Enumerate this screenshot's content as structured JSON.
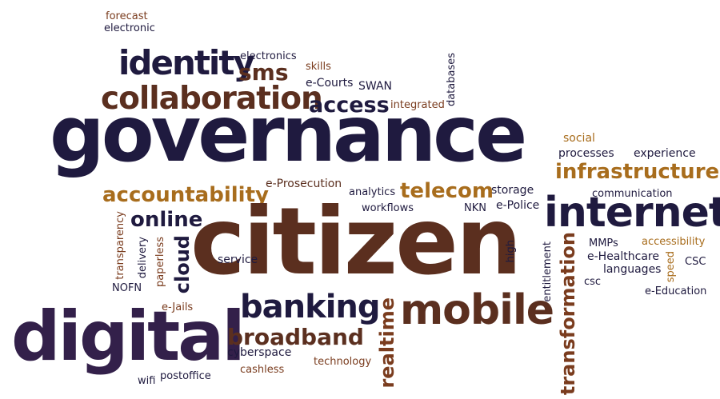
{
  "palette": {
    "navy": "#1f1a3f",
    "purple": "#33204a",
    "brown": "#5b2f1f",
    "rust": "#7a3c1e",
    "gold": "#a86d1d",
    "dark": "#2b2b2b"
  },
  "words": [
    {
      "key": "forecast",
      "text": "forecast",
      "color": "rust"
    },
    {
      "key": "electronic",
      "text": "electronic",
      "color": "navy"
    },
    {
      "key": "identity",
      "text": "identity",
      "color": "navy"
    },
    {
      "key": "sms",
      "text": "sms",
      "color": "brown"
    },
    {
      "key": "electronics",
      "text": "electronics",
      "color": "navy"
    },
    {
      "key": "skills",
      "text": "skills",
      "color": "rust"
    },
    {
      "key": "databases",
      "text": "databases",
      "color": "navy"
    },
    {
      "key": "e_courts",
      "text": "e-Courts",
      "color": "navy"
    },
    {
      "key": "swan",
      "text": "SWAN",
      "color": "navy"
    },
    {
      "key": "collaboration",
      "text": "collaboration",
      "color": "brown"
    },
    {
      "key": "access",
      "text": "access",
      "color": "navy"
    },
    {
      "key": "integrated",
      "text": "integrated",
      "color": "rust"
    },
    {
      "key": "governance",
      "text": "governance",
      "color": "navy"
    },
    {
      "key": "social",
      "text": "social",
      "color": "gold"
    },
    {
      "key": "processes",
      "text": "processes",
      "color": "navy"
    },
    {
      "key": "experience",
      "text": "experience",
      "color": "navy"
    },
    {
      "key": "infrastructure",
      "text": "infrastructure",
      "color": "gold"
    },
    {
      "key": "e_prosecution",
      "text": "e-Prosecution",
      "color": "brown"
    },
    {
      "key": "accountability",
      "text": "accountability",
      "color": "gold"
    },
    {
      "key": "analytics",
      "text": "analytics",
      "color": "navy"
    },
    {
      "key": "telecom",
      "text": "telecom",
      "color": "gold"
    },
    {
      "key": "storage",
      "text": "storage",
      "color": "navy"
    },
    {
      "key": "communication",
      "text": "communication",
      "color": "navy"
    },
    {
      "key": "workflows",
      "text": "workflows",
      "color": "navy"
    },
    {
      "key": "nkn",
      "text": "NKN",
      "color": "navy"
    },
    {
      "key": "e_police",
      "text": "e-Police",
      "color": "navy"
    },
    {
      "key": "internet",
      "text": "internet",
      "color": "navy"
    },
    {
      "key": "online",
      "text": "online",
      "color": "navy"
    },
    {
      "key": "citizen",
      "text": "citizen",
      "color": "brown"
    },
    {
      "key": "transparency",
      "text": "transparency",
      "color": "rust"
    },
    {
      "key": "delivery",
      "text": "delivery",
      "color": "navy"
    },
    {
      "key": "paperless",
      "text": "paperless",
      "color": "rust"
    },
    {
      "key": "cloud",
      "text": "cloud",
      "color": "navy"
    },
    {
      "key": "service",
      "text": "service",
      "color": "navy"
    },
    {
      "key": "high",
      "text": "high",
      "color": "navy"
    },
    {
      "key": "entitlement",
      "text": "entitlement",
      "color": "navy"
    },
    {
      "key": "transformation",
      "text": "transformation",
      "color": "rust"
    },
    {
      "key": "mmps",
      "text": "MMPs",
      "color": "navy"
    },
    {
      "key": "accessibility",
      "text": "accessibility",
      "color": "gold"
    },
    {
      "key": "e_healthcare",
      "text": "e-Healthcare",
      "color": "navy"
    },
    {
      "key": "speed",
      "text": "speed",
      "color": "gold"
    },
    {
      "key": "csc_upper",
      "text": "CSC",
      "color": "navy"
    },
    {
      "key": "languages",
      "text": "languages",
      "color": "navy"
    },
    {
      "key": "csc_lower",
      "text": "csc",
      "color": "navy"
    },
    {
      "key": "e_education",
      "text": "e-Education",
      "color": "navy"
    },
    {
      "key": "nofn",
      "text": "NOFN",
      "color": "navy"
    },
    {
      "key": "banking",
      "text": "banking",
      "color": "navy"
    },
    {
      "key": "realtime",
      "text": "realtime",
      "color": "rust"
    },
    {
      "key": "mobile",
      "text": "mobile",
      "color": "brown"
    },
    {
      "key": "e_jails",
      "text": "e-Jails",
      "color": "rust"
    },
    {
      "key": "digital",
      "text": "digital",
      "color": "purple"
    },
    {
      "key": "broadband",
      "text": "broadband",
      "color": "brown"
    },
    {
      "key": "cyberspace",
      "text": "cyberspace",
      "color": "navy"
    },
    {
      "key": "technology",
      "text": "technology",
      "color": "rust"
    },
    {
      "key": "cashless",
      "text": "cashless",
      "color": "rust"
    },
    {
      "key": "wifi",
      "text": "wifi",
      "color": "navy"
    },
    {
      "key": "postoffice",
      "text": "postoffice",
      "color": "navy"
    }
  ]
}
